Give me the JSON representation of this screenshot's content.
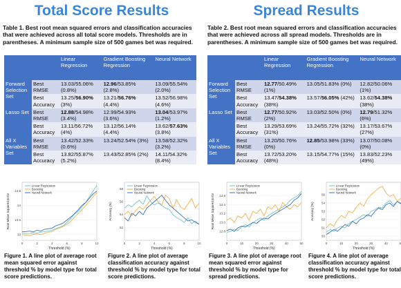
{
  "total": {
    "title": "Total Score Results",
    "caption": "Table 1. Best root mean squared errors and classification accuracies that were achieved across all total score models. Thresholds are in parentheses. A minimum sample size of 500 games bet was required.",
    "headers": [
      "Linear Regression",
      "Gradient Boosting Regression",
      "Neural Network"
    ],
    "groups": [
      {
        "name": "Forward Selection Set",
        "rows": [
          {
            "label": "Best RMSE",
            "cells": [
              {
                "pre": "",
                "b": "",
                "post": "13.03/55.06% (0.8%)"
              },
              {
                "pre": "",
                "b": "12.96",
                "post": "/53.85% (2.8%)"
              },
              {
                "pre": "",
                "b": "",
                "post": "13.09/55.54% (2.0%)"
              }
            ]
          },
          {
            "label": "Best Accuracy",
            "cells": [
              {
                "pre": "13.25/",
                "b": "56.90%",
                "post": " (3%)"
              },
              {
                "pre": "13.21/",
                "b": "56.76%",
                "post": " (4.4%)"
              },
              {
                "pre": "",
                "b": "",
                "post": "13.52/56.98% (4.6%)"
              }
            ]
          }
        ]
      },
      {
        "name": "Lasso Set",
        "rows": [
          {
            "label": "Best RMSE",
            "cells": [
              {
                "pre": "",
                "b": "12.88",
                "post": "/54.98% (3.4%)"
              },
              {
                "pre": "",
                "b": "",
                "post": "12.99/54.93% (3.6%)"
              },
              {
                "pre": "",
                "b": "13.04",
                "post": "/53.97% (1.2%)"
              }
            ]
          },
          {
            "label": "Best Accuracy",
            "cells": [
              {
                "pre": "",
                "b": "",
                "post": "13.11/56.72% (4%)"
              },
              {
                "pre": "",
                "b": "",
                "post": "13.12/56.14% (4.4%)"
              },
              {
                "pre": "13.62/",
                "b": "57.63%",
                "post": " (3.8%)"
              }
            ]
          }
        ]
      },
      {
        "name": "All X Variables Set",
        "rows": [
          {
            "label": "Best RMSE",
            "cells": [
              {
                "pre": "",
                "b": "",
                "post": "13.42/52.33% (0.6%)"
              },
              {
                "pre": "",
                "b": "",
                "post": "13.24/52.54% (3%)"
              },
              {
                "pre": "",
                "b": "",
                "post": "13.58/52.32% (3.2%)"
              }
            ]
          },
          {
            "label": "Best Accuracy",
            "cells": [
              {
                "pre": "",
                "b": "",
                "post": "13.82/55.87% (5.2%)"
              },
              {
                "pre": "",
                "b": "",
                "post": "13.43/52.85% (2%)"
              },
              {
                "pre": "",
                "b": "",
                "post": "14.11/54.32% (8.4%)"
              }
            ]
          }
        ]
      }
    ],
    "fig1_caption": "Figure 1. A line plot of average root mean squared error against threshold % by model type for total score predictions.",
    "fig2_caption": "Figure 2. A line plot of average classification accuracy against threshold % by model type for total score predictions."
  },
  "spread": {
    "title": "Spread Results",
    "caption": "Table 2. Best root mean squared errors and classification accuracies that were achieved across all spread models. Thresholds are in parentheses. A minimum sample size of 500 games bet was required.",
    "headers": [
      "Linear Regression",
      "Gradient Boosting Regression",
      "Neural Network"
    ],
    "groups": [
      {
        "name": "Forward Selection Set",
        "rows": [
          {
            "label": "Best RMSE",
            "cells": [
              {
                "pre": "",
                "b": "12.77",
                "post": "/50.49% (1%)"
              },
              {
                "pre": "",
                "b": "",
                "post": "13.05/51.83% (0%)"
              },
              {
                "pre": "",
                "b": "",
                "post": "12.82/50.06% (1%)"
              }
            ]
          },
          {
            "label": "Best Accuracy",
            "cells": [
              {
                "pre": "13.47/",
                "b": "54.38%",
                "post": " (38%)"
              },
              {
                "pre": "13.57/",
                "b": "56.05%",
                "post": " (42%)"
              },
              {
                "pre": "13.62/",
                "b": "54.38%",
                "post": " (38%)"
              }
            ]
          }
        ]
      },
      {
        "name": "Lasso Set",
        "rows": [
          {
            "label": "Best RMSE",
            "cells": [
              {
                "pre": "",
                "b": "12.77",
                "post": "/50.92% (2%)"
              },
              {
                "pre": "",
                "b": "",
                "post": "13.03/52.50% (0%)"
              },
              {
                "pre": "",
                "b": "12.79",
                "post": "/51.32% (6%)"
              }
            ]
          },
          {
            "label": "Best Accuracy",
            "cells": [
              {
                "pre": "",
                "b": "",
                "post": "13.29/53.69% (31%)"
              },
              {
                "pre": "",
                "b": "",
                "post": "13.24/55.72% (32%)"
              },
              {
                "pre": "",
                "b": "",
                "post": "13.17/53.67% (27%)"
              }
            ]
          }
        ]
      },
      {
        "name": "All X Variables Set",
        "rows": [
          {
            "label": "Best RMSE",
            "cells": [
              {
                "pre": "",
                "b": "",
                "post": "13.20/50.76% (0%)"
              },
              {
                "pre": "",
                "b": "12.85",
                "post": "/53.98% (33%)"
              },
              {
                "pre": "",
                "b": "",
                "post": "13.07/50.08% (0%)"
              }
            ]
          },
          {
            "label": "Best Accuracy",
            "cells": [
              {
                "pre": "",
                "b": "",
                "post": "13.72/53.20% (48%)"
              },
              {
                "pre": "",
                "b": "",
                "post": "13.15/54.77% (15%)"
              },
              {
                "pre": "",
                "b": "",
                "post": "13.83/52.23% (49%)"
              }
            ]
          }
        ]
      }
    ],
    "fig3_caption": "Figure 3. A line plot of average root mean squared error against threshold % by model type for spread predictions.",
    "fig4_caption": "Figure 4. A line plot of average classification accuracy against threshold % by model type for total score predictions."
  },
  "legend": [
    "Linear Regression",
    "Boosting",
    "Neural Network"
  ],
  "colors": {
    "heading": "#3a86d6",
    "table_header": "#4472c4",
    "row_dark": "#cfd5ea",
    "row_light": "#e9ebf5",
    "linear": "#6fc5c9",
    "boosting": "#f2b04a",
    "neural": "#3b6fb6"
  },
  "chart_data": [
    {
      "type": "line",
      "xlabel": "Threshold (%)",
      "ylabel": "Root Mean Squared Error",
      "xticks": [
        "0",
        "2",
        "4",
        "6",
        "8",
        "10"
      ],
      "yticks": [
        "13",
        "13.5",
        "14",
        "14.5"
      ],
      "ylim": [
        12.8,
        14.8
      ],
      "x": [
        0,
        0.5,
        1,
        1.5,
        2,
        2.5,
        3,
        3.5,
        4,
        4.5,
        5,
        5.5,
        6,
        6.5,
        7,
        7.5,
        8,
        8.5,
        9,
        9.5,
        10
      ],
      "series": [
        {
          "name": "Linear Regression",
          "values": [
            13.05,
            13.03,
            13.04,
            13.06,
            13.05,
            13.08,
            13.1,
            13.12,
            13.15,
            13.2,
            13.25,
            13.3,
            13.42,
            13.55,
            13.7,
            13.8,
            13.95,
            14.1,
            14.3,
            14.5,
            14.7
          ]
        },
        {
          "name": "Boosting",
          "values": [
            13.0,
            12.98,
            12.97,
            13.0,
            13.02,
            13.0,
            13.04,
            13.08,
            13.1,
            13.18,
            13.22,
            13.28,
            13.35,
            13.45,
            13.6,
            13.72,
            13.85,
            14.0,
            14.15,
            14.3,
            14.45
          ]
        },
        {
          "name": "Neural Network",
          "values": [
            13.1,
            13.1,
            13.12,
            13.09,
            13.15,
            13.12,
            13.18,
            13.2,
            13.22,
            13.3,
            13.34,
            13.4,
            13.5,
            13.6,
            13.72,
            13.85,
            14.0,
            14.1,
            14.25,
            14.4,
            14.5
          ]
        }
      ]
    },
    {
      "type": "line",
      "xlabel": "Threshold (%)",
      "ylabel": "Accuracy (%)",
      "xticks": [
        "0",
        "2",
        "4",
        "6",
        "8",
        "10"
      ],
      "yticks": [
        "52",
        "54",
        "56",
        "58"
      ],
      "ylim": [
        50,
        59
      ],
      "x": [
        0,
        0.5,
        1,
        1.5,
        2,
        2.5,
        3,
        3.5,
        4,
        4.5,
        5,
        5.5,
        6,
        6.5,
        7,
        7.5,
        8,
        8.5,
        9,
        9.5,
        10
      ],
      "series": [
        {
          "name": "Linear Regression",
          "values": [
            55.0,
            55.5,
            55.2,
            55.8,
            56.2,
            55.6,
            56.9,
            56.0,
            55.5,
            55.8,
            55.4,
            55.0,
            54.8,
            54.0,
            53.5,
            53.2,
            52.8,
            53.5,
            52.6,
            53.0,
            52.5
          ]
        },
        {
          "name": "Boosting",
          "values": [
            54.0,
            54.5,
            53.8,
            54.6,
            55.2,
            54.8,
            55.5,
            56.2,
            56.8,
            56.0,
            55.5,
            57.0,
            56.5,
            55.0,
            56.3,
            55.2,
            54.8,
            55.6,
            56.5,
            55.0,
            55.8
          ]
        },
        {
          "name": "Neural Network",
          "values": [
            53.5,
            53.0,
            54.2,
            53.8,
            54.5,
            54.0,
            55.0,
            55.5,
            56.0,
            56.5,
            57.0,
            56.2,
            55.5,
            55.0,
            54.5,
            54.0,
            53.5,
            53.0,
            53.2,
            52.8,
            52.5
          ]
        }
      ]
    },
    {
      "type": "line",
      "xlabel": "Threshold (%)",
      "ylabel": "Root Mean Squared Error",
      "xticks": [
        "0",
        "10",
        "20",
        "30",
        "40",
        "50"
      ],
      "yticks": [
        "12.8",
        "13.0",
        "13.2",
        "13.4",
        "13.6"
      ],
      "ylim": [
        12.6,
        13.9
      ],
      "x": [
        0,
        2.5,
        5,
        7.5,
        10,
        12.5,
        15,
        17.5,
        20,
        22.5,
        25,
        27.5,
        30,
        32.5,
        35,
        37.5,
        40,
        42.5,
        45,
        47.5,
        50
      ],
      "series": [
        {
          "name": "Linear Regression",
          "values": [
            12.78,
            12.8,
            12.85,
            12.82,
            12.9,
            12.95,
            12.9,
            13.0,
            13.05,
            13.1,
            13.05,
            13.15,
            13.2,
            13.25,
            13.3,
            13.35,
            13.4,
            13.5,
            13.55,
            13.6,
            13.7
          ]
        },
        {
          "name": "Boosting",
          "values": [
            13.05,
            13.1,
            13.0,
            13.15,
            13.1,
            13.2,
            13.05,
            13.25,
            13.2,
            13.3,
            13.15,
            13.35,
            13.3,
            13.4,
            13.25,
            13.45,
            13.35,
            13.3,
            13.4,
            13.35,
            13.45
          ]
        },
        {
          "name": "Neural Network",
          "values": [
            12.82,
            12.85,
            12.8,
            12.88,
            12.92,
            12.9,
            12.95,
            13.0,
            12.98,
            13.05,
            13.1,
            13.08,
            13.15,
            13.2,
            13.25,
            13.3,
            13.35,
            13.4,
            13.5,
            13.55,
            13.65
          ]
        }
      ]
    },
    {
      "type": "line",
      "xlabel": "Threshold (%)",
      "ylabel": "Accuracy (%)",
      "xticks": [
        "0",
        "10",
        "20",
        "30",
        "40",
        "50"
      ],
      "yticks": [
        "50",
        "51",
        "52",
        "53",
        "54",
        "55"
      ],
      "ylim": [
        49.5,
        56.5
      ],
      "x": [
        0,
        2.5,
        5,
        7.5,
        10,
        12.5,
        15,
        17.5,
        20,
        22.5,
        25,
        27.5,
        30,
        32.5,
        35,
        37.5,
        40,
        42.5,
        45,
        47.5,
        50
      ],
      "series": [
        {
          "name": "Linear Regression",
          "values": [
            50.5,
            50.8,
            50.6,
            51.0,
            51.2,
            51.0,
            51.5,
            51.8,
            52.0,
            52.3,
            52.6,
            52.4,
            53.0,
            53.2,
            53.5,
            53.4,
            54.0,
            54.3,
            53.8,
            54.2,
            54.0
          ]
        },
        {
          "name": "Boosting",
          "values": [
            51.0,
            51.5,
            51.2,
            52.0,
            52.5,
            52.2,
            53.0,
            52.8,
            53.5,
            54.0,
            53.6,
            54.5,
            55.0,
            55.4,
            55.8,
            56.0,
            55.2,
            54.8,
            55.0,
            54.2,
            54.6
          ]
        },
        {
          "name": "Neural Network",
          "values": [
            50.2,
            50.5,
            50.8,
            50.6,
            51.0,
            51.4,
            51.2,
            51.8,
            51.5,
            52.0,
            52.2,
            52.6,
            52.4,
            53.0,
            53.4,
            53.2,
            53.8,
            54.0,
            53.6,
            54.2,
            53.9
          ]
        }
      ]
    }
  ]
}
